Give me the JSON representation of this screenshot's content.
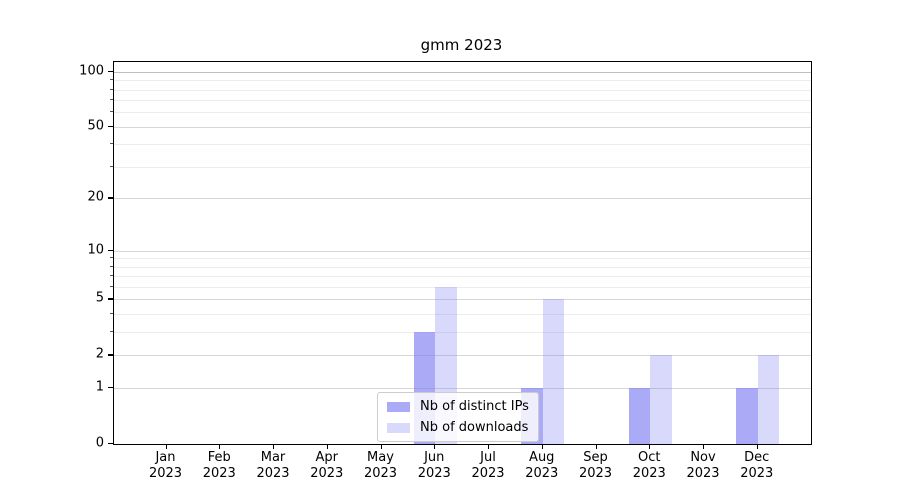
{
  "title": "gmm 2023",
  "chart_data": {
    "type": "bar",
    "title": "gmm 2023",
    "categories": [
      "Jan",
      "Feb",
      "Mar",
      "Apr",
      "May",
      "Jun",
      "Jul",
      "Aug",
      "Sep",
      "Oct",
      "Nov",
      "Dec"
    ],
    "x_tick_year": "2023",
    "series": [
      {
        "name": "Nb of distinct IPs",
        "key": "distinct-ips",
        "color": "rgba(118,118,240,0.62)",
        "values": [
          0,
          0,
          0,
          0,
          0,
          3,
          0,
          1,
          0,
          1,
          0,
          1
        ]
      },
      {
        "name": "Nb of downloads",
        "key": "downloads",
        "color": "rgba(118,118,240,0.28)",
        "values": [
          0,
          0,
          0,
          0,
          0,
          6,
          0,
          5,
          0,
          2,
          0,
          2
        ]
      }
    ],
    "xlabel": "",
    "ylabel": "",
    "yscale": "log1p",
    "ylim": [
      0,
      113
    ],
    "y_major_ticks": [
      0,
      1,
      2,
      5,
      10,
      20,
      50,
      100
    ],
    "y_minor_gridlines": [
      3,
      4,
      6,
      7,
      8,
      9,
      30,
      40,
      60,
      70,
      80,
      90
    ],
    "grid": "both",
    "legend_position": "lower center"
  },
  "legend": {
    "items": [
      {
        "label": "Nb of distinct IPs",
        "color": "rgba(118,118,240,0.62)"
      },
      {
        "label": "Nb of downloads",
        "color": "rgba(118,118,240,0.28)"
      }
    ]
  },
  "colors": {
    "bar_distinct_ips": "rgba(118,118,240,0.62)",
    "bar_downloads": "rgba(118,118,240,0.28)",
    "grid_major": "#d7d7d7",
    "grid_minor": "#ececec",
    "grid_top": "#bfbfbf",
    "spine": "#000000",
    "background": "#ffffff",
    "text": "#000000"
  }
}
